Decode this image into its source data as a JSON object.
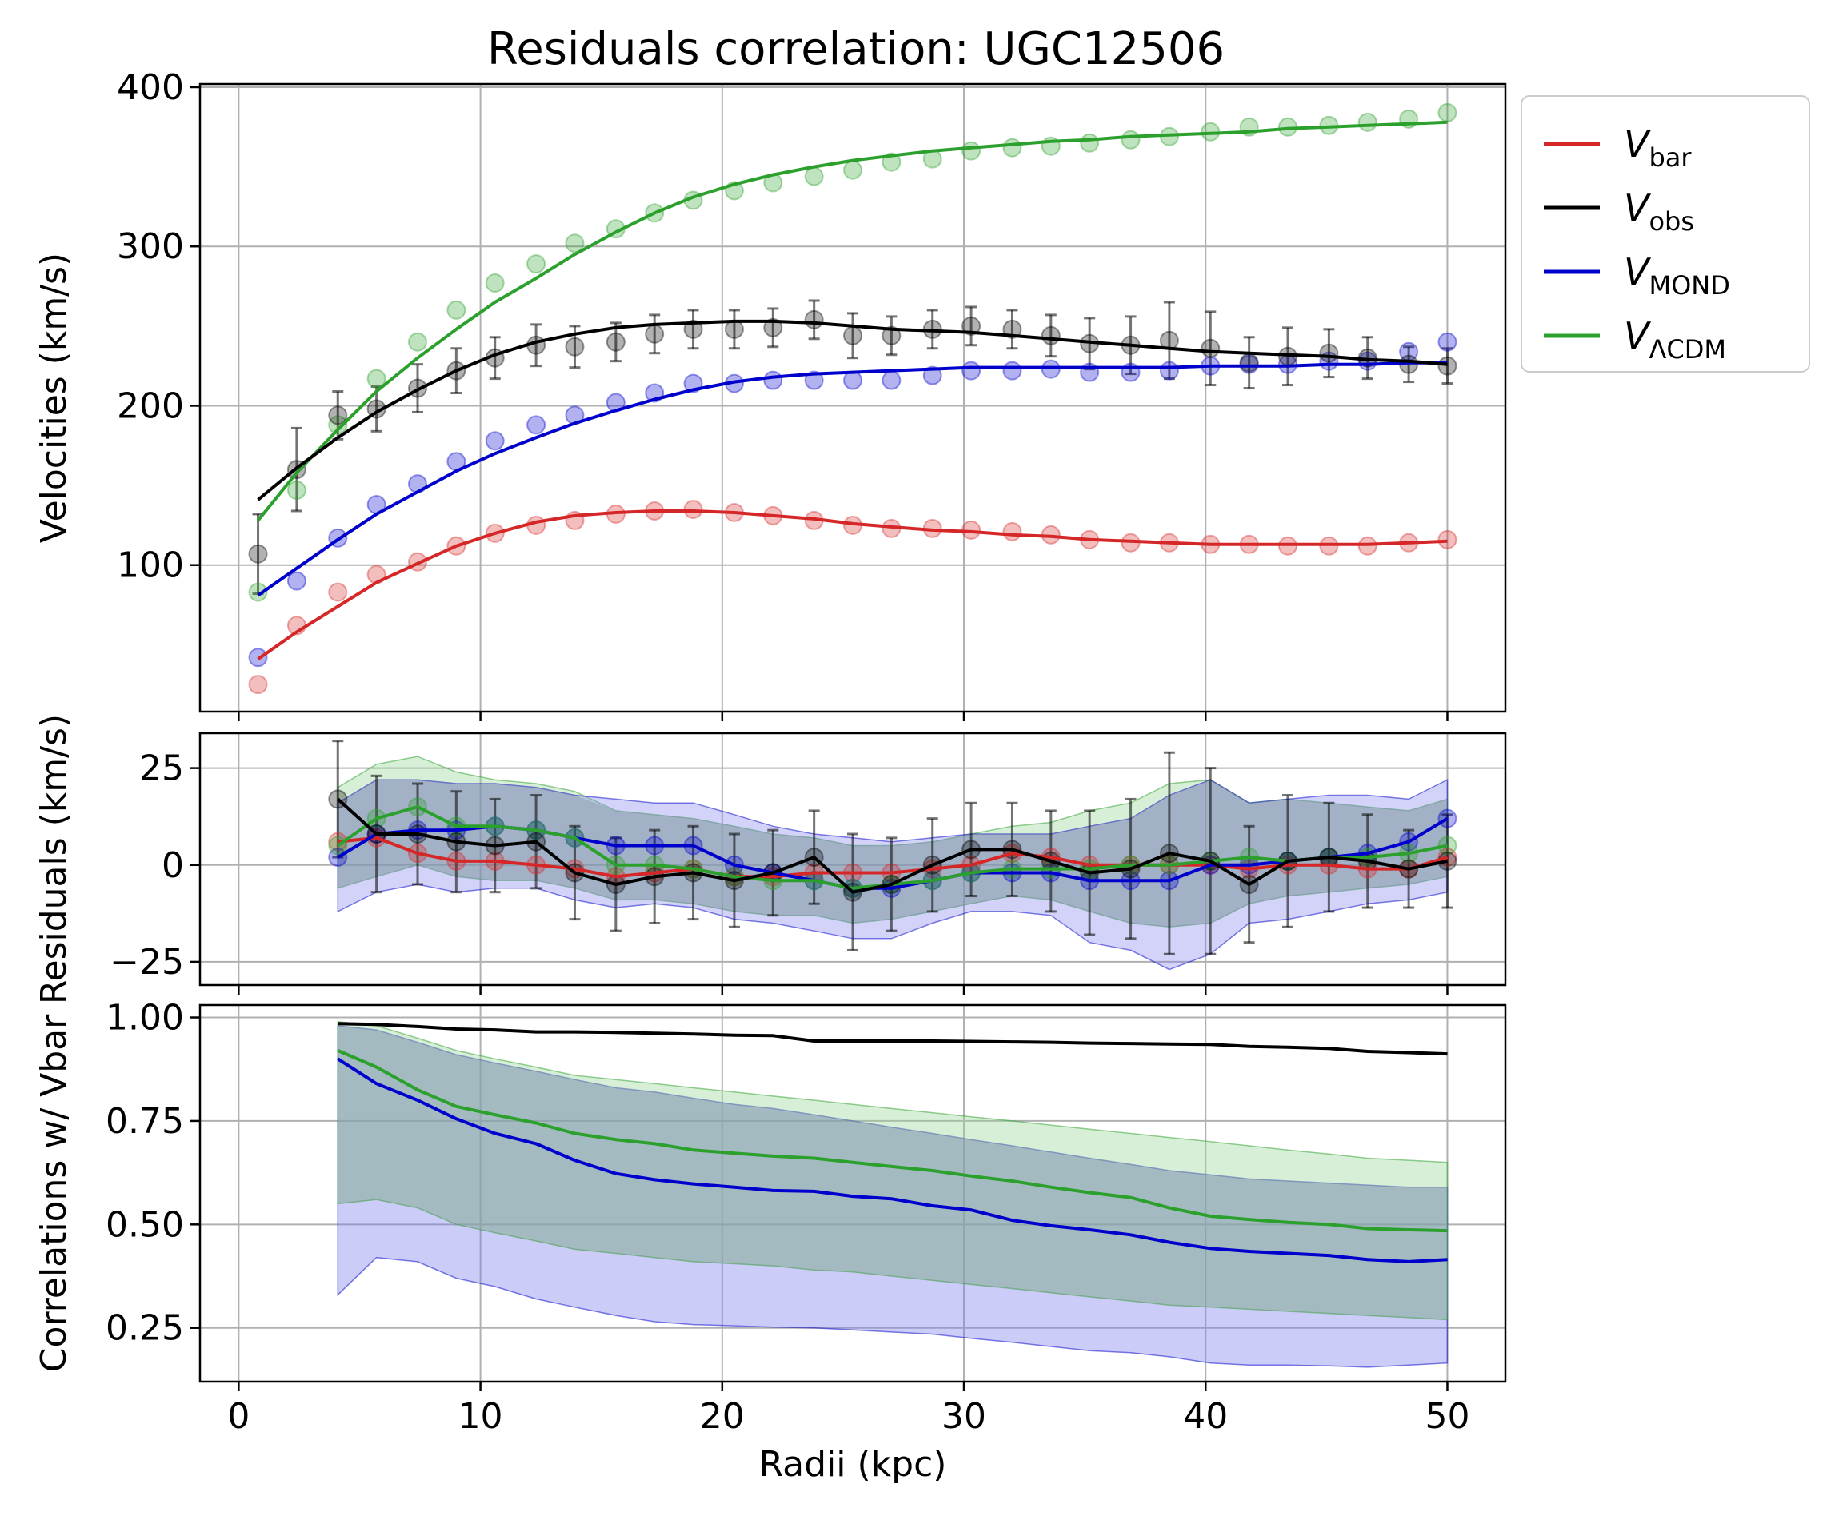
{
  "title": "Residuals correlation: UGC12506",
  "colors": {
    "bar": "#d62728",
    "obs": "#000000",
    "mond": "#0000cc",
    "lcdm": "#2ca02c",
    "grid": "#b0b0b0",
    "mond_band": "#8080ee",
    "lcdm_band": "#98d898",
    "obs_band": "#778899"
  },
  "legend": {
    "placement": "outside-right-top",
    "items": [
      {
        "key": "bar",
        "symbol": "V",
        "sub": "bar"
      },
      {
        "key": "obs",
        "symbol": "V",
        "sub": "obs"
      },
      {
        "key": "mond",
        "symbol": "V",
        "sub": "MOND"
      },
      {
        "key": "lcdm",
        "symbol": "V",
        "sub": "ΛCDM"
      }
    ]
  },
  "chart_data": [
    {
      "type": "line",
      "panel": "velocities",
      "title": "Residuals correlation: UGC12506",
      "ylabel": "Velocities (km/s)",
      "xlabel": "",
      "xlim": [
        -1.6,
        52.4
      ],
      "ylim": [
        8,
        402
      ],
      "yticks": [
        100,
        200,
        300,
        400
      ],
      "xticks": [
        0,
        10,
        20,
        30,
        40,
        50
      ],
      "grid": true,
      "r": [
        0.8,
        2.4,
        4.1,
        5.7,
        7.4,
        9.0,
        10.6,
        12.3,
        13.9,
        15.6,
        17.2,
        18.8,
        20.5,
        22.1,
        23.8,
        25.4,
        27.0,
        28.7,
        30.3,
        32.0,
        33.6,
        35.2,
        36.9,
        38.5,
        40.2,
        41.8,
        43.4,
        45.1,
        46.7,
        48.4,
        50.0
      ],
      "points": {
        "bar": [
          25,
          62,
          83,
          94,
          102,
          112,
          120,
          125,
          128,
          132,
          134,
          135,
          133,
          131,
          128,
          125,
          123,
          123,
          122,
          121,
          119,
          116,
          114,
          114,
          113,
          113,
          112,
          112,
          112,
          114,
          116
        ],
        "mond": [
          42,
          90,
          117,
          138,
          151,
          165,
          178,
          188,
          194,
          202,
          208,
          214,
          214,
          216,
          216,
          216,
          216,
          219,
          222,
          222,
          223,
          221,
          221,
          222,
          225,
          226,
          226,
          228,
          228,
          234,
          240
        ],
        "lcdm": [
          83,
          147,
          188,
          217,
          240,
          260,
          277,
          289,
          302,
          311,
          321,
          329,
          335,
          340,
          344,
          348,
          353,
          355,
          360,
          362,
          363,
          365,
          367,
          369,
          372,
          375,
          375,
          376,
          378,
          380,
          384
        ],
        "obs": [
          107,
          160,
          194,
          198,
          211,
          222,
          230,
          238,
          237,
          240,
          245,
          248,
          248,
          249,
          254,
          244,
          244,
          248,
          250,
          248,
          244,
          239,
          238,
          241,
          236,
          227,
          231,
          233,
          230,
          226,
          225
        ]
      },
      "obs_err": [
        25,
        26,
        15,
        14,
        15,
        14,
        13,
        13,
        13,
        12,
        12,
        12,
        12,
        12,
        12,
        14,
        12,
        12,
        12,
        12,
        13,
        16,
        18,
        24,
        23,
        16,
        18,
        15,
        13,
        11,
        11
      ],
      "curves": {
        "bar": [
          41,
          58,
          74,
          89,
          101,
          112,
          120,
          127,
          131,
          133,
          134,
          134,
          133,
          131,
          129,
          126,
          124,
          122,
          121,
          119,
          118,
          116,
          115,
          114,
          113,
          113,
          113,
          113,
          113,
          114,
          115
        ],
        "mond": [
          81,
          98,
          116,
          132,
          146,
          159,
          170,
          180,
          189,
          197,
          204,
          210,
          215,
          218,
          220,
          221,
          222,
          223,
          224,
          224,
          224,
          224,
          224,
          224,
          225,
          225,
          225,
          226,
          226,
          227,
          227
        ],
        "lcdm": [
          128,
          158,
          185,
          209,
          230,
          248,
          265,
          280,
          295,
          309,
          321,
          331,
          339,
          345,
          350,
          354,
          357,
          360,
          362,
          364,
          366,
          367,
          369,
          370,
          371,
          372,
          374,
          375,
          376,
          377,
          378
        ],
        "obs": [
          141,
          161,
          180,
          196,
          210,
          222,
          232,
          240,
          245,
          249,
          251,
          252,
          253,
          253,
          252,
          250,
          248,
          247,
          246,
          244,
          242,
          240,
          238,
          236,
          234,
          233,
          232,
          231,
          229,
          228,
          226
        ]
      }
    },
    {
      "type": "line",
      "panel": "residuals",
      "ylabel": "Residuals (km/s)",
      "xlabel": "",
      "xlim": [
        -1.6,
        52.4
      ],
      "ylim": [
        -31,
        34
      ],
      "yticks": [
        -25,
        0,
        25
      ],
      "xticks": [
        0,
        10,
        20,
        30,
        40,
        50
      ],
      "grid": true,
      "r": [
        4.1,
        5.7,
        7.4,
        9.0,
        10.6,
        12.3,
        13.9,
        15.6,
        17.2,
        18.8,
        20.5,
        22.1,
        23.8,
        25.4,
        27.0,
        28.7,
        30.3,
        32.0,
        33.6,
        35.2,
        36.9,
        38.5,
        40.2,
        41.8,
        43.4,
        45.1,
        46.7,
        48.4,
        50.0
      ],
      "series": {
        "bar": [
          6,
          7,
          3,
          1,
          1,
          0,
          -1,
          -3,
          -2,
          -1,
          -3,
          -3,
          -2,
          -2,
          -2,
          -1,
          0,
          3,
          2,
          0,
          0,
          0,
          0,
          -1,
          0,
          0,
          -1,
          -1,
          2
        ],
        "mond": [
          2,
          8,
          9,
          9,
          10,
          9,
          7,
          5,
          5,
          5,
          0,
          -2,
          -4,
          -6,
          -6,
          -4,
          -2,
          -2,
          -2,
          -4,
          -4,
          -4,
          0,
          0,
          1,
          2,
          3,
          6,
          12
        ],
        "lcdm": [
          5,
          12,
          15,
          10,
          10,
          9,
          7,
          0,
          0,
          -1,
          -3,
          -4,
          -4,
          -6,
          -5,
          -4,
          -2,
          -1,
          -1,
          -1,
          0,
          0,
          1,
          2,
          1,
          2,
          2,
          3,
          5
        ],
        "obs": [
          17,
          8,
          8,
          6,
          5,
          6,
          -2,
          -5,
          -3,
          -2,
          -4,
          -2,
          2,
          -7,
          -5,
          0,
          4,
          4,
          1,
          -2,
          -1,
          3,
          1,
          -5,
          1,
          2,
          1,
          -1,
          1
        ]
      },
      "obs_err": [
        15,
        15,
        13,
        13,
        12,
        12,
        12,
        12,
        12,
        12,
        12,
        11,
        12,
        15,
        12,
        12,
        12,
        12,
        13,
        16,
        18,
        26,
        24,
        15,
        17,
        14,
        12,
        10,
        12
      ],
      "bands": {
        "lcdm_lo": [
          -6,
          -3,
          0,
          -3,
          -4,
          -4,
          -6,
          -9,
          -9,
          -10,
          -12,
          -13,
          -13,
          -15,
          -14,
          -12,
          -10,
          -8,
          -9,
          -12,
          -15,
          -16,
          -15,
          -10,
          -8,
          -7,
          -6,
          -5,
          -3
        ],
        "lcdm_hi": [
          20,
          26,
          28,
          24,
          22,
          21,
          19,
          14,
          13,
          12,
          10,
          8,
          7,
          5,
          5,
          6,
          8,
          10,
          11,
          14,
          16,
          21,
          22,
          16,
          17,
          16,
          15,
          14,
          17
        ],
        "mond_lo": [
          -12,
          -7,
          -5,
          -7,
          -6,
          -6,
          -9,
          -11,
          -10,
          -11,
          -14,
          -15,
          -17,
          -19,
          -19,
          -15,
          -12,
          -12,
          -13,
          -20,
          -22,
          -27,
          -23,
          -15,
          -14,
          -12,
          -10,
          -9,
          -7
        ],
        "mond_hi": [
          16,
          22,
          22,
          21,
          21,
          20,
          18,
          17,
          16,
          16,
          13,
          10,
          8,
          7,
          6,
          7,
          8,
          8,
          8,
          10,
          12,
          18,
          22,
          16,
          17,
          18,
          18,
          17,
          22
        ]
      }
    },
    {
      "type": "line",
      "panel": "correlations",
      "ylabel": "Correlations w/ Vbar",
      "xlabel": "Radii (kpc)",
      "xlim": [
        -1.6,
        52.4
      ],
      "ylim": [
        0.12,
        1.03
      ],
      "yticks": [
        0.25,
        0.5,
        0.75,
        1.0
      ],
      "ytick_labels": [
        "0.25",
        "0.50",
        "0.75",
        "1.00"
      ],
      "xticks": [
        0,
        10,
        20,
        30,
        40,
        50
      ],
      "grid": true,
      "r": [
        4.1,
        5.7,
        7.4,
        9.0,
        10.6,
        12.3,
        13.9,
        15.6,
        17.2,
        18.8,
        20.5,
        22.1,
        23.8,
        25.4,
        27.0,
        28.7,
        30.3,
        32.0,
        33.6,
        35.2,
        36.9,
        38.5,
        40.2,
        41.8,
        43.4,
        45.1,
        46.7,
        48.4,
        50.0
      ],
      "series": {
        "obs": [
          0.985,
          0.983,
          0.978,
          0.972,
          0.97,
          0.965,
          0.965,
          0.964,
          0.962,
          0.96,
          0.957,
          0.956,
          0.943,
          0.943,
          0.943,
          0.943,
          0.942,
          0.941,
          0.94,
          0.938,
          0.937,
          0.936,
          0.935,
          0.93,
          0.928,
          0.925,
          0.918,
          0.915,
          0.912
        ],
        "mond": [
          0.9,
          0.84,
          0.8,
          0.755,
          0.72,
          0.695,
          0.655,
          0.623,
          0.608,
          0.598,
          0.59,
          0.582,
          0.58,
          0.568,
          0.562,
          0.545,
          0.535,
          0.51,
          0.497,
          0.487,
          0.475,
          0.457,
          0.442,
          0.435,
          0.43,
          0.425,
          0.415,
          0.41,
          0.415
        ],
        "lcdm": [
          0.92,
          0.88,
          0.825,
          0.785,
          0.765,
          0.745,
          0.72,
          0.705,
          0.695,
          0.68,
          0.672,
          0.665,
          0.66,
          0.65,
          0.64,
          0.63,
          0.617,
          0.605,
          0.59,
          0.577,
          0.565,
          0.54,
          0.52,
          0.512,
          0.505,
          0.5,
          0.49,
          0.487,
          0.485
        ]
      },
      "bands": {
        "lcdm_lo": [
          0.55,
          0.56,
          0.54,
          0.5,
          0.48,
          0.46,
          0.44,
          0.43,
          0.42,
          0.41,
          0.405,
          0.4,
          0.39,
          0.385,
          0.375,
          0.365,
          0.355,
          0.345,
          0.335,
          0.325,
          0.315,
          0.305,
          0.3,
          0.295,
          0.29,
          0.285,
          0.28,
          0.275,
          0.27
        ],
        "lcdm_hi": [
          0.99,
          0.98,
          0.95,
          0.92,
          0.9,
          0.88,
          0.86,
          0.85,
          0.84,
          0.83,
          0.82,
          0.81,
          0.8,
          0.79,
          0.78,
          0.77,
          0.76,
          0.75,
          0.74,
          0.73,
          0.72,
          0.71,
          0.7,
          0.69,
          0.68,
          0.67,
          0.66,
          0.655,
          0.65
        ],
        "mond_lo": [
          0.33,
          0.42,
          0.41,
          0.37,
          0.35,
          0.32,
          0.3,
          0.28,
          0.265,
          0.258,
          0.255,
          0.252,
          0.25,
          0.245,
          0.24,
          0.235,
          0.225,
          0.215,
          0.205,
          0.195,
          0.19,
          0.18,
          0.165,
          0.16,
          0.16,
          0.158,
          0.155,
          0.16,
          0.165
        ],
        "mond_hi": [
          0.98,
          0.97,
          0.94,
          0.91,
          0.89,
          0.87,
          0.85,
          0.83,
          0.82,
          0.805,
          0.79,
          0.78,
          0.765,
          0.75,
          0.735,
          0.72,
          0.705,
          0.69,
          0.675,
          0.66,
          0.645,
          0.63,
          0.62,
          0.61,
          0.605,
          0.6,
          0.595,
          0.59,
          0.59
        ]
      }
    }
  ]
}
